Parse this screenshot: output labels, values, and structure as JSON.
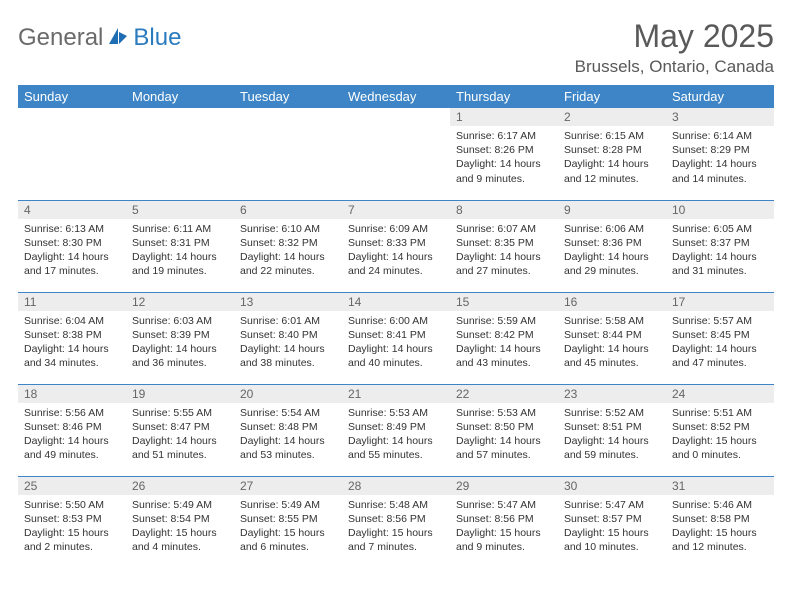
{
  "brand": {
    "part1": "General",
    "part2": "Blue"
  },
  "title": {
    "month": "May 2025",
    "location": "Brussels, Ontario, Canada"
  },
  "colors": {
    "header_bg": "#3d85c6",
    "header_text": "#ffffff",
    "daynum_bg": "#ededed",
    "border": "#3d85c6",
    "text": "#333333",
    "title_color": "#595959"
  },
  "weekdays": [
    "Sunday",
    "Monday",
    "Tuesday",
    "Wednesday",
    "Thursday",
    "Friday",
    "Saturday"
  ],
  "grid": [
    [
      null,
      null,
      null,
      null,
      {
        "n": "1",
        "sr": "Sunrise: 6:17 AM",
        "ss": "Sunset: 8:26 PM",
        "dl": "Daylight: 14 hours and 9 minutes."
      },
      {
        "n": "2",
        "sr": "Sunrise: 6:15 AM",
        "ss": "Sunset: 8:28 PM",
        "dl": "Daylight: 14 hours and 12 minutes."
      },
      {
        "n": "3",
        "sr": "Sunrise: 6:14 AM",
        "ss": "Sunset: 8:29 PM",
        "dl": "Daylight: 14 hours and 14 minutes."
      }
    ],
    [
      {
        "n": "4",
        "sr": "Sunrise: 6:13 AM",
        "ss": "Sunset: 8:30 PM",
        "dl": "Daylight: 14 hours and 17 minutes."
      },
      {
        "n": "5",
        "sr": "Sunrise: 6:11 AM",
        "ss": "Sunset: 8:31 PM",
        "dl": "Daylight: 14 hours and 19 minutes."
      },
      {
        "n": "6",
        "sr": "Sunrise: 6:10 AM",
        "ss": "Sunset: 8:32 PM",
        "dl": "Daylight: 14 hours and 22 minutes."
      },
      {
        "n": "7",
        "sr": "Sunrise: 6:09 AM",
        "ss": "Sunset: 8:33 PM",
        "dl": "Daylight: 14 hours and 24 minutes."
      },
      {
        "n": "8",
        "sr": "Sunrise: 6:07 AM",
        "ss": "Sunset: 8:35 PM",
        "dl": "Daylight: 14 hours and 27 minutes."
      },
      {
        "n": "9",
        "sr": "Sunrise: 6:06 AM",
        "ss": "Sunset: 8:36 PM",
        "dl": "Daylight: 14 hours and 29 minutes."
      },
      {
        "n": "10",
        "sr": "Sunrise: 6:05 AM",
        "ss": "Sunset: 8:37 PM",
        "dl": "Daylight: 14 hours and 31 minutes."
      }
    ],
    [
      {
        "n": "11",
        "sr": "Sunrise: 6:04 AM",
        "ss": "Sunset: 8:38 PM",
        "dl": "Daylight: 14 hours and 34 minutes."
      },
      {
        "n": "12",
        "sr": "Sunrise: 6:03 AM",
        "ss": "Sunset: 8:39 PM",
        "dl": "Daylight: 14 hours and 36 minutes."
      },
      {
        "n": "13",
        "sr": "Sunrise: 6:01 AM",
        "ss": "Sunset: 8:40 PM",
        "dl": "Daylight: 14 hours and 38 minutes."
      },
      {
        "n": "14",
        "sr": "Sunrise: 6:00 AM",
        "ss": "Sunset: 8:41 PM",
        "dl": "Daylight: 14 hours and 40 minutes."
      },
      {
        "n": "15",
        "sr": "Sunrise: 5:59 AM",
        "ss": "Sunset: 8:42 PM",
        "dl": "Daylight: 14 hours and 43 minutes."
      },
      {
        "n": "16",
        "sr": "Sunrise: 5:58 AM",
        "ss": "Sunset: 8:44 PM",
        "dl": "Daylight: 14 hours and 45 minutes."
      },
      {
        "n": "17",
        "sr": "Sunrise: 5:57 AM",
        "ss": "Sunset: 8:45 PM",
        "dl": "Daylight: 14 hours and 47 minutes."
      }
    ],
    [
      {
        "n": "18",
        "sr": "Sunrise: 5:56 AM",
        "ss": "Sunset: 8:46 PM",
        "dl": "Daylight: 14 hours and 49 minutes."
      },
      {
        "n": "19",
        "sr": "Sunrise: 5:55 AM",
        "ss": "Sunset: 8:47 PM",
        "dl": "Daylight: 14 hours and 51 minutes."
      },
      {
        "n": "20",
        "sr": "Sunrise: 5:54 AM",
        "ss": "Sunset: 8:48 PM",
        "dl": "Daylight: 14 hours and 53 minutes."
      },
      {
        "n": "21",
        "sr": "Sunrise: 5:53 AM",
        "ss": "Sunset: 8:49 PM",
        "dl": "Daylight: 14 hours and 55 minutes."
      },
      {
        "n": "22",
        "sr": "Sunrise: 5:53 AM",
        "ss": "Sunset: 8:50 PM",
        "dl": "Daylight: 14 hours and 57 minutes."
      },
      {
        "n": "23",
        "sr": "Sunrise: 5:52 AM",
        "ss": "Sunset: 8:51 PM",
        "dl": "Daylight: 14 hours and 59 minutes."
      },
      {
        "n": "24",
        "sr": "Sunrise: 5:51 AM",
        "ss": "Sunset: 8:52 PM",
        "dl": "Daylight: 15 hours and 0 minutes."
      }
    ],
    [
      {
        "n": "25",
        "sr": "Sunrise: 5:50 AM",
        "ss": "Sunset: 8:53 PM",
        "dl": "Daylight: 15 hours and 2 minutes."
      },
      {
        "n": "26",
        "sr": "Sunrise: 5:49 AM",
        "ss": "Sunset: 8:54 PM",
        "dl": "Daylight: 15 hours and 4 minutes."
      },
      {
        "n": "27",
        "sr": "Sunrise: 5:49 AM",
        "ss": "Sunset: 8:55 PM",
        "dl": "Daylight: 15 hours and 6 minutes."
      },
      {
        "n": "28",
        "sr": "Sunrise: 5:48 AM",
        "ss": "Sunset: 8:56 PM",
        "dl": "Daylight: 15 hours and 7 minutes."
      },
      {
        "n": "29",
        "sr": "Sunrise: 5:47 AM",
        "ss": "Sunset: 8:56 PM",
        "dl": "Daylight: 15 hours and 9 minutes."
      },
      {
        "n": "30",
        "sr": "Sunrise: 5:47 AM",
        "ss": "Sunset: 8:57 PM",
        "dl": "Daylight: 15 hours and 10 minutes."
      },
      {
        "n": "31",
        "sr": "Sunrise: 5:46 AM",
        "ss": "Sunset: 8:58 PM",
        "dl": "Daylight: 15 hours and 12 minutes."
      }
    ]
  ]
}
